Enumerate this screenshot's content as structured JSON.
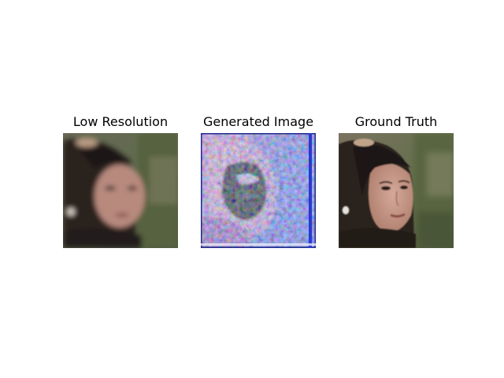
{
  "figure": {
    "panels": [
      {
        "title": "Low Resolution",
        "image": "blurry-face-photo"
      },
      {
        "title": "Generated Image",
        "image": "noisy-generated-face"
      },
      {
        "title": "Ground Truth",
        "image": "sharp-face-photo"
      }
    ]
  }
}
